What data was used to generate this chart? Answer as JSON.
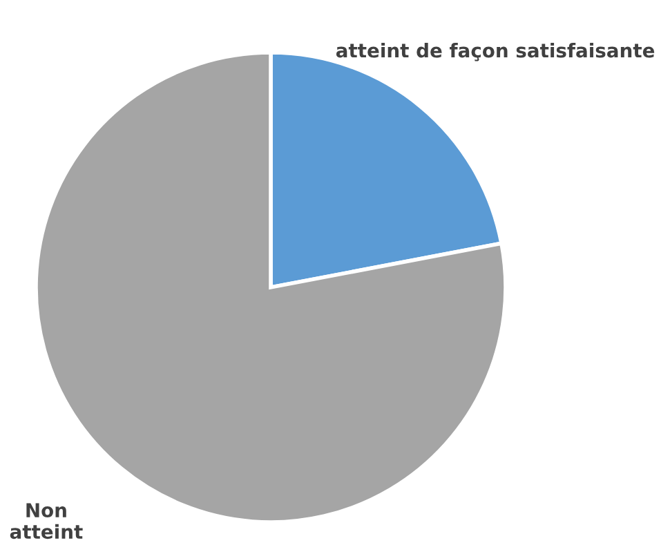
{
  "chart_data": {
    "type": "pie",
    "categories": [
      "atteint de façon satisfaisante",
      "Non atteint"
    ],
    "values": [
      22,
      78
    ],
    "colors": [
      "#5b9bd5",
      "#a5a5a5"
    ]
  }
}
